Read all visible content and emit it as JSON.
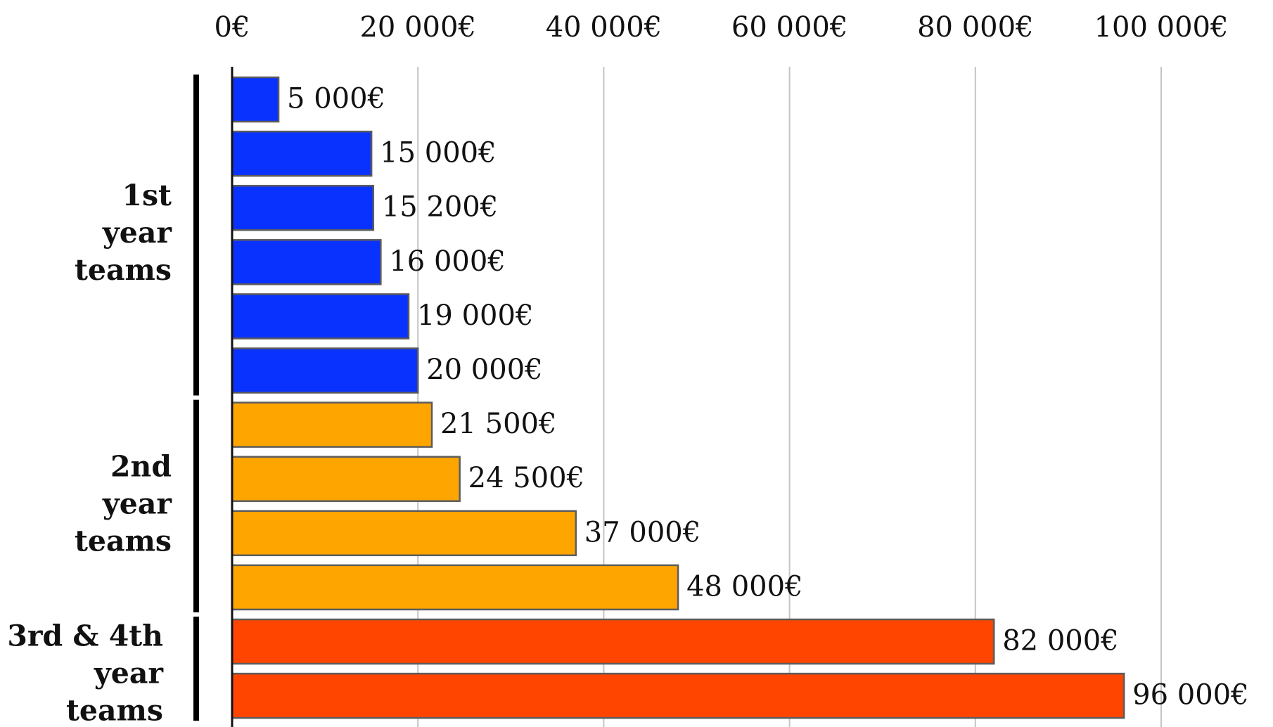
{
  "chart_data": {
    "type": "bar",
    "orientation": "horizontal",
    "title": "",
    "xlabel": "",
    "ylabel": "",
    "xlim": [
      0,
      100000
    ],
    "x_ticks": [
      0,
      20000,
      40000,
      60000,
      80000,
      100000
    ],
    "x_tick_labels": [
      "0€",
      "20 000€",
      "40 000€",
      "60 000€",
      "80 000€",
      "100 000€"
    ],
    "grid": "vertical",
    "x_axis_position": "top",
    "legend": "none",
    "groups": [
      {
        "label_lines": [
          "1st",
          "year",
          "teams"
        ],
        "color": "#0a32ff",
        "values": [
          5000,
          15000,
          15200,
          16000,
          19000,
          20000
        ],
        "value_labels": [
          "5 000€",
          "15 000€",
          "15 200€",
          "16 000€",
          "19 000€",
          "20 000€"
        ]
      },
      {
        "label_lines": [
          "2nd",
          "year",
          "teams"
        ],
        "color": "#ffa500",
        "values": [
          21500,
          24500,
          37000,
          48000
        ],
        "value_labels": [
          "21 500€",
          "24 500€",
          "37 000€",
          "48 000€"
        ]
      },
      {
        "label_lines": [
          "3rd & 4th",
          "year",
          "teams"
        ],
        "color": "#ff4500",
        "values": [
          82000,
          96000
        ],
        "value_labels": [
          "82 000€",
          "96 000€"
        ]
      }
    ]
  }
}
